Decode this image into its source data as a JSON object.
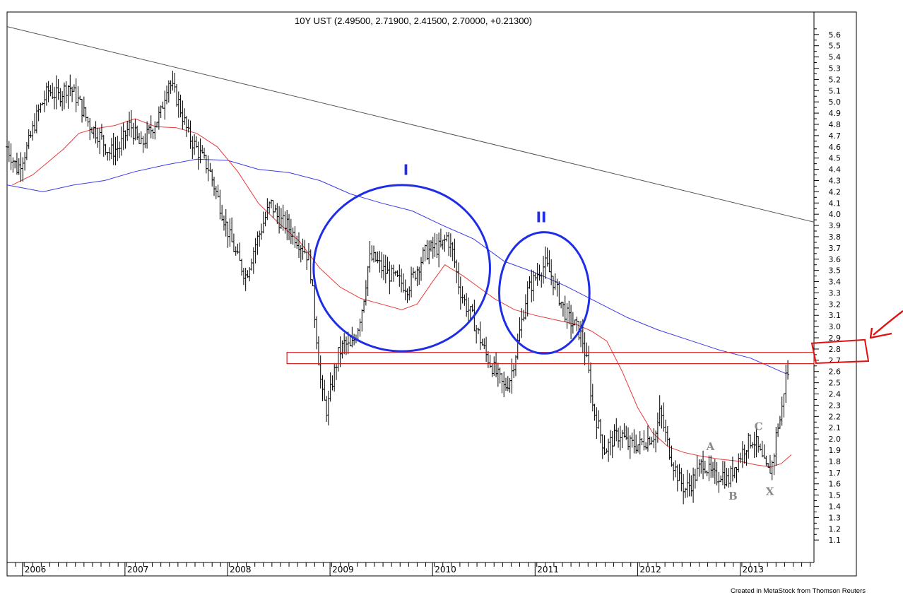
{
  "chart_data": {
    "type": "bar",
    "title": "10Y UST (2.49500, 2.71900, 2.41500, 2.70000, +0.21300)",
    "credit": "Created in MetaStock from Thomson Reuters",
    "x_axis": {
      "range": [
        2005.85,
        2013.72
      ],
      "year_labels": [
        {
          "label": "2006",
          "x": 2006.0
        },
        {
          "label": "2007",
          "x": 2007.0
        },
        {
          "label": "2008",
          "x": 2008.0
        },
        {
          "label": "2009",
          "x": 2009.0
        },
        {
          "label": "2010",
          "x": 2010.0
        },
        {
          "label": "2011",
          "x": 2011.0
        },
        {
          "label": "2012",
          "x": 2012.0
        },
        {
          "label": "2013",
          "x": 2013.0
        }
      ]
    },
    "y_axis": {
      "side": "right",
      "range": [
        0.9,
        5.8
      ],
      "ticks": [
        "1.1",
        "1.2",
        "1.3",
        "1.4",
        "1.5",
        "1.6",
        "1.7",
        "1.8",
        "1.9",
        "2.0",
        "2.1",
        "2.2",
        "2.3",
        "2.4",
        "2.5",
        "2.6",
        "2.7",
        "2.8",
        "2.9",
        "3.0",
        "3.1",
        "3.2",
        "3.3",
        "3.4",
        "3.5",
        "3.6",
        "3.7",
        "3.8",
        "3.9",
        "4.0",
        "4.1",
        "4.2",
        "4.3",
        "4.4",
        "4.5",
        "4.6",
        "4.7",
        "4.8",
        "4.9",
        "5.0",
        "5.1",
        "5.2",
        "5.3",
        "5.4",
        "5.5",
        "5.6"
      ]
    },
    "price_path": [
      [
        2005.85,
        4.6
      ],
      [
        2005.95,
        4.4
      ],
      [
        2006.05,
        4.6
      ],
      [
        2006.15,
        4.9
      ],
      [
        2006.25,
        5.1
      ],
      [
        2006.35,
        5.05
      ],
      [
        2006.45,
        5.15
      ],
      [
        2006.55,
        5.0
      ],
      [
        2006.65,
        4.8
      ],
      [
        2006.75,
        4.7
      ],
      [
        2006.85,
        4.55
      ],
      [
        2006.95,
        4.6
      ],
      [
        2007.05,
        4.8
      ],
      [
        2007.15,
        4.6
      ],
      [
        2007.25,
        4.75
      ],
      [
        2007.35,
        4.9
      ],
      [
        2007.42,
        5.2
      ],
      [
        2007.52,
        5.0
      ],
      [
        2007.62,
        4.7
      ],
      [
        2007.72,
        4.55
      ],
      [
        2007.82,
        4.4
      ],
      [
        2007.92,
        4.1
      ],
      [
        2008.02,
        3.8
      ],
      [
        2008.1,
        3.6
      ],
      [
        2008.18,
        3.45
      ],
      [
        2008.26,
        3.7
      ],
      [
        2008.34,
        3.9
      ],
      [
        2008.42,
        4.1
      ],
      [
        2008.5,
        3.95
      ],
      [
        2008.58,
        3.9
      ],
      [
        2008.66,
        3.8
      ],
      [
        2008.74,
        3.7
      ],
      [
        2008.8,
        3.6
      ],
      [
        2008.86,
        3.0
      ],
      [
        2008.92,
        2.4
      ],
      [
        2008.97,
        2.25
      ],
      [
        2009.02,
        2.5
      ],
      [
        2009.08,
        2.75
      ],
      [
        2009.14,
        2.85
      ],
      [
        2009.2,
        2.8
      ],
      [
        2009.26,
        2.95
      ],
      [
        2009.32,
        3.2
      ],
      [
        2009.38,
        3.6
      ],
      [
        2009.44,
        3.6
      ],
      [
        2009.52,
        3.5
      ],
      [
        2009.6,
        3.45
      ],
      [
        2009.68,
        3.4
      ],
      [
        2009.76,
        3.35
      ],
      [
        2009.84,
        3.5
      ],
      [
        2009.92,
        3.65
      ],
      [
        2010.0,
        3.7
      ],
      [
        2010.08,
        3.7
      ],
      [
        2010.14,
        3.8
      ],
      [
        2010.2,
        3.65
      ],
      [
        2010.26,
        3.35
      ],
      [
        2010.32,
        3.2
      ],
      [
        2010.38,
        3.1
      ],
      [
        2010.44,
        2.95
      ],
      [
        2010.52,
        2.75
      ],
      [
        2010.58,
        2.65
      ],
      [
        2010.64,
        2.55
      ],
      [
        2010.7,
        2.45
      ],
      [
        2010.76,
        2.55
      ],
      [
        2010.82,
        2.8
      ],
      [
        2010.86,
        3.0
      ],
      [
        2010.92,
        3.3
      ],
      [
        2010.98,
        3.4
      ],
      [
        2011.04,
        3.5
      ],
      [
        2011.1,
        3.55
      ],
      [
        2011.16,
        3.45
      ],
      [
        2011.22,
        3.3
      ],
      [
        2011.28,
        3.15
      ],
      [
        2011.34,
        3.05
      ],
      [
        2011.4,
        3.0
      ],
      [
        2011.46,
        2.9
      ],
      [
        2011.52,
        2.6
      ],
      [
        2011.56,
        2.3
      ],
      [
        2011.62,
        2.1
      ],
      [
        2011.68,
        1.9
      ],
      [
        2011.76,
        2.0
      ],
      [
        2011.84,
        2.05
      ],
      [
        2011.9,
        1.95
      ],
      [
        2011.96,
        1.95
      ],
      [
        2012.02,
        1.95
      ],
      [
        2012.1,
        2.0
      ],
      [
        2012.18,
        2.05
      ],
      [
        2012.22,
        2.25
      ],
      [
        2012.28,
        2.0
      ],
      [
        2012.34,
        1.8
      ],
      [
        2012.4,
        1.65
      ],
      [
        2012.46,
        1.55
      ],
      [
        2012.52,
        1.6
      ],
      [
        2012.58,
        1.7
      ],
      [
        2012.64,
        1.8
      ],
      [
        2012.7,
        1.7
      ],
      [
        2012.76,
        1.65
      ],
      [
        2012.82,
        1.7
      ],
      [
        2012.88,
        1.62
      ],
      [
        2012.94,
        1.75
      ],
      [
        2013.0,
        1.85
      ],
      [
        2013.06,
        1.95
      ],
      [
        2013.12,
        2.0
      ],
      [
        2013.16,
        1.95
      ],
      [
        2013.2,
        1.85
      ],
      [
        2013.24,
        1.75
      ],
      [
        2013.28,
        1.7
      ],
      [
        2013.32,
        1.8
      ],
      [
        2013.36,
        2.1
      ],
      [
        2013.4,
        2.2
      ],
      [
        2013.44,
        2.55
      ],
      [
        2013.47,
        2.6
      ]
    ],
    "moving_average_short": {
      "color": "#e83a3a",
      "points": [
        [
          2005.9,
          4.26
        ],
        [
          2006.1,
          4.35
        ],
        [
          2006.4,
          4.58
        ],
        [
          2006.55,
          4.72
        ],
        [
          2006.7,
          4.76
        ],
        [
          2006.9,
          4.79
        ],
        [
          2007.1,
          4.85
        ],
        [
          2007.3,
          4.78
        ],
        [
          2007.5,
          4.77
        ],
        [
          2007.7,
          4.72
        ],
        [
          2007.9,
          4.6
        ],
        [
          2008.1,
          4.38
        ],
        [
          2008.3,
          4.1
        ],
        [
          2008.5,
          3.92
        ],
        [
          2008.7,
          3.76
        ],
        [
          2008.9,
          3.52
        ],
        [
          2009.1,
          3.35
        ],
        [
          2009.3,
          3.25
        ],
        [
          2009.5,
          3.2
        ],
        [
          2009.7,
          3.15
        ],
        [
          2009.85,
          3.2
        ],
        [
          2010.0,
          3.4
        ],
        [
          2010.12,
          3.55
        ],
        [
          2010.3,
          3.45
        ],
        [
          2010.45,
          3.35
        ],
        [
          2010.6,
          3.25
        ],
        [
          2010.8,
          3.15
        ],
        [
          2011.0,
          3.1
        ],
        [
          2011.2,
          3.06
        ],
        [
          2011.4,
          3.02
        ],
        [
          2011.55,
          2.96
        ],
        [
          2011.7,
          2.87
        ],
        [
          2011.85,
          2.6
        ],
        [
          2012.0,
          2.28
        ],
        [
          2012.15,
          2.05
        ],
        [
          2012.3,
          1.93
        ],
        [
          2012.45,
          1.88
        ],
        [
          2012.6,
          1.85
        ],
        [
          2012.8,
          1.82
        ],
        [
          2013.0,
          1.8
        ],
        [
          2013.15,
          1.77
        ],
        [
          2013.3,
          1.75
        ],
        [
          2013.4,
          1.78
        ],
        [
          2013.5,
          1.86
        ]
      ]
    },
    "moving_average_long": {
      "color": "#3a3ae8",
      "points": [
        [
          2005.85,
          4.26
        ],
        [
          2006.2,
          4.2
        ],
        [
          2006.5,
          4.26
        ],
        [
          2006.8,
          4.3
        ],
        [
          2007.1,
          4.38
        ],
        [
          2007.4,
          4.44
        ],
        [
          2007.7,
          4.49
        ],
        [
          2008.0,
          4.48
        ],
        [
          2008.3,
          4.4
        ],
        [
          2008.6,
          4.37
        ],
        [
          2008.9,
          4.3
        ],
        [
          2009.2,
          4.18
        ],
        [
          2009.5,
          4.1
        ],
        [
          2009.8,
          4.03
        ],
        [
          2010.1,
          3.9
        ],
        [
          2010.4,
          3.78
        ],
        [
          2010.7,
          3.58
        ],
        [
          2011.0,
          3.48
        ],
        [
          2011.3,
          3.36
        ],
        [
          2011.6,
          3.22
        ],
        [
          2011.9,
          3.08
        ],
        [
          2012.2,
          2.97
        ],
        [
          2012.5,
          2.88
        ],
        [
          2012.8,
          2.79
        ],
        [
          2013.1,
          2.72
        ],
        [
          2013.3,
          2.64
        ],
        [
          2013.45,
          2.58
        ]
      ]
    },
    "trendline": {
      "color": "#555555",
      "points": [
        [
          2005.85,
          5.67
        ],
        [
          2013.72,
          3.93
        ]
      ]
    },
    "annotations": {
      "circle_labels": [
        {
          "text": "I",
          "x": 2009.74,
          "y": 4.35
        },
        {
          "text": "II",
          "x": 2011.06,
          "y": 3.93
        }
      ],
      "circles": [
        {
          "color": "#1e2de6",
          "cx": 2009.7,
          "cy": 3.52,
          "rx_years": 0.86,
          "ry_values": 0.74
        },
        {
          "color": "#1e2de6",
          "cx": 2011.09,
          "cy": 3.3,
          "rx_years": 0.44,
          "ry_values": 0.54
        }
      ],
      "support_band": {
        "color": "#d62020",
        "x_start": 2008.58,
        "x_end": 2013.72,
        "y_low": 2.67,
        "y_high": 2.77
      },
      "highlight_box": {
        "color": "#e01010",
        "y_low": 2.68,
        "y_high": 2.87
      },
      "wave_labels": [
        {
          "text": "A",
          "x": 2012.71,
          "y": 1.9
        },
        {
          "text": "B",
          "x": 2012.93,
          "y": 1.46
        },
        {
          "text": "C",
          "x": 2013.18,
          "y": 2.08
        },
        {
          "text": "X",
          "x": 2013.29,
          "y": 1.5
        }
      ]
    }
  }
}
